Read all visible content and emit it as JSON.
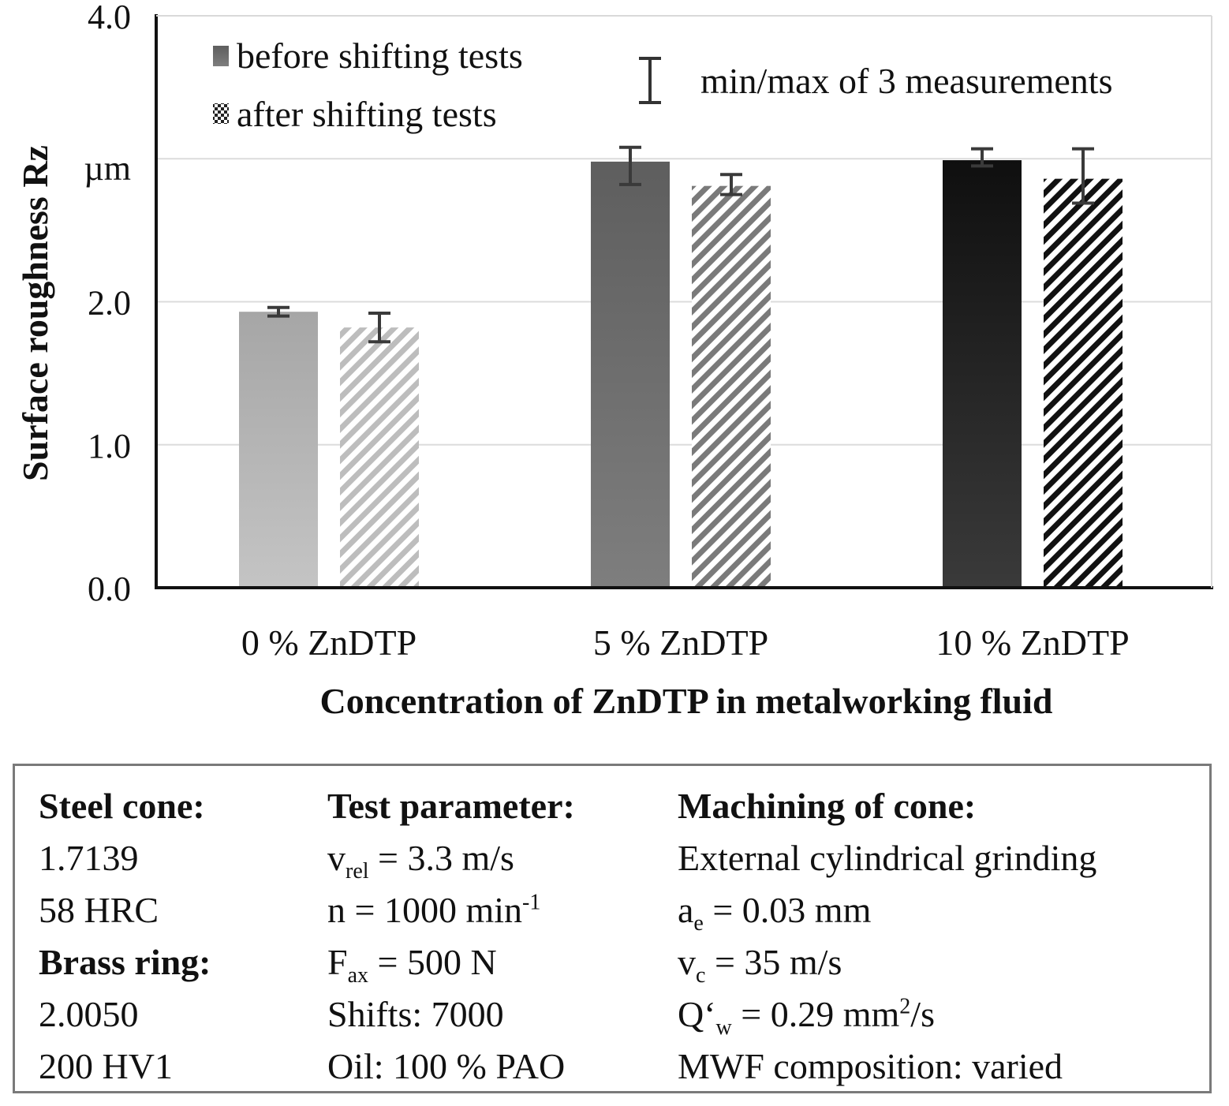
{
  "chart_data": {
    "type": "bar",
    "ylabel": "Surface roughness Rz",
    "yunit": "µm",
    "xlabel": "Concentration of ZnDTP in metalworking fluid",
    "ylim": [
      0,
      4.0
    ],
    "yticks": [
      "0.0",
      "1.0",
      "2.0",
      "",
      "4.0"
    ],
    "grid": true,
    "categories": [
      "0 % ZnDTP",
      "5 % ZnDTP",
      "10 % ZnDTP"
    ],
    "series": [
      {
        "name": "before shifting tests",
        "values": [
          1.93,
          2.98,
          2.99
        ],
        "err_min": [
          1.9,
          2.82,
          2.95
        ],
        "err_max": [
          1.96,
          3.08,
          3.07
        ]
      },
      {
        "name": "after shifting tests",
        "values": [
          1.82,
          2.81,
          2.86
        ],
        "err_min": [
          1.72,
          2.75,
          2.69
        ],
        "err_max": [
          1.92,
          2.89,
          3.07
        ]
      }
    ],
    "bar_colors": {
      "before": [
        "#aaaaaa",
        "#666666",
        "#1a1a1a"
      ],
      "after_stripe": [
        "#bdbdbd",
        "#7a7a7a",
        "#111111"
      ]
    },
    "legend": {
      "errorbar_label": "min/max of 3 measurements",
      "placement": "top"
    }
  },
  "info": {
    "col1": {
      "h1": "Steel cone:",
      "l1": "1.7139",
      "l2": "58 HRC",
      "h2": "Brass ring:",
      "l3": "2.0050",
      "l4": "200 HV1"
    },
    "col2": {
      "h1": "Test parameter:",
      "vrel_a": "v",
      "vrel_sub": "rel",
      "vrel_b": " = 3.3 m/s",
      "n_a": "n = 1000 min",
      "n_sup": "-1",
      "fax_a": "F",
      "fax_sub": "ax",
      "fax_b": " = 500 N",
      "shifts": "Shifts: 7000",
      "oil": "Oil: 100 % PAO"
    },
    "col3": {
      "h1": "Machining of cone:",
      "grind": "External cylindrical grinding",
      "ae_a": "a",
      "ae_sub": "e",
      "ae_b": " = 0.03 mm",
      "vc_a": "v",
      "vc_sub": "c",
      "vc_b": " = 35 m/s",
      "qw_a": "Q‘",
      "qw_sub": "w",
      "qw_b": " = 0.29 mm",
      "qw_sup": "2",
      "qw_c": "/s",
      "mwf": "MWF composition: varied"
    }
  }
}
